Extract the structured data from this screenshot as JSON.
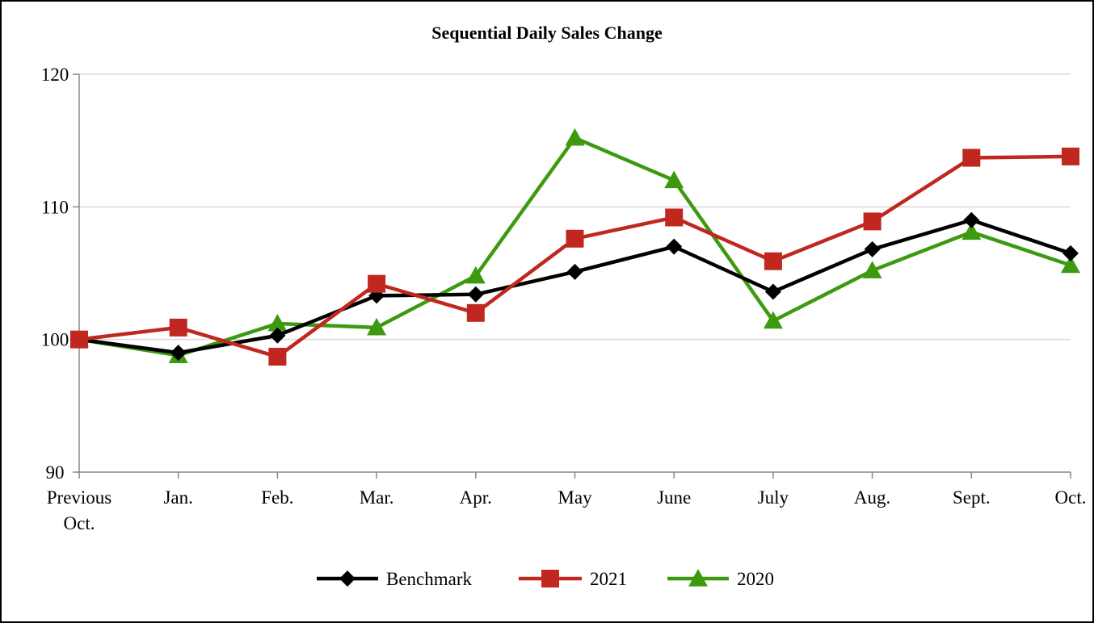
{
  "chart_data": {
    "type": "line",
    "title": "Sequential Daily Sales Change",
    "xlabel": "",
    "ylabel": "",
    "ylim": [
      90,
      120
    ],
    "yticks": [
      90,
      100,
      110,
      120
    ],
    "categories": [
      [
        "Previous",
        "Oct."
      ],
      [
        "Jan."
      ],
      [
        "Feb."
      ],
      [
        "Mar."
      ],
      [
        "Apr."
      ],
      [
        "May"
      ],
      [
        "June"
      ],
      [
        "July"
      ],
      [
        "Aug."
      ],
      [
        "Sept."
      ],
      [
        "Oct."
      ]
    ],
    "grid": true,
    "legend_position": "bottom",
    "series": [
      {
        "name": "Benchmark",
        "color": "#000000",
        "marker": "diamond",
        "values": [
          100.0,
          99.0,
          100.3,
          103.3,
          103.4,
          105.1,
          107.0,
          103.6,
          106.8,
          109.0,
          106.5
        ]
      },
      {
        "name": "2021",
        "color": "#c0271e",
        "marker": "square",
        "values": [
          100.0,
          100.9,
          98.7,
          104.2,
          102.0,
          107.6,
          109.2,
          105.9,
          108.9,
          113.7,
          113.8
        ]
      },
      {
        "name": "2020",
        "color": "#3d9a10",
        "marker": "triangle",
        "values": [
          100.0,
          98.8,
          101.2,
          100.9,
          104.8,
          115.2,
          112.0,
          101.4,
          105.2,
          108.1,
          105.6
        ]
      }
    ]
  }
}
